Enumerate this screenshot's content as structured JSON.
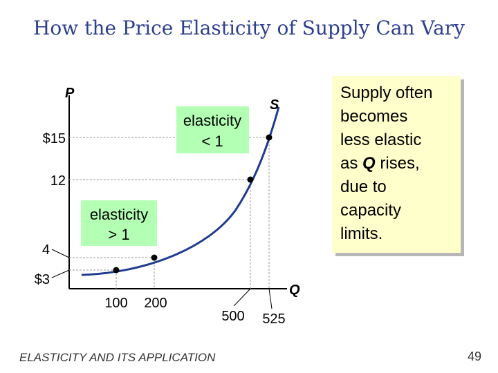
{
  "slide": {
    "title": "How the Price Elasticity of Supply Can Vary",
    "footer": "ELASTICITY AND ITS APPLICATION",
    "page_number": "49",
    "callout": {
      "line1": "Supply often",
      "line2": "becomes",
      "line3": "less elastic",
      "line4_pre": "as ",
      "line4_em": "Q",
      "line4_post": " rises,",
      "line5": "due to",
      "line6": "capacity",
      "line7": "limits."
    }
  },
  "colors": {
    "title": "#2e3f8f",
    "curve": "#1f3a8f",
    "annotation_fill": "#b3ffb3",
    "callout_fill": "#ffffcc",
    "guide": "#999999"
  },
  "chart_data": {
    "type": "line",
    "xlabel": "Q",
    "ylabel": "P",
    "curve_label": "S",
    "points": [
      {
        "x": 100,
        "y": 3
      },
      {
        "x": 200,
        "y": 4
      },
      {
        "x": 500,
        "y": 12
      },
      {
        "x": 525,
        "y": 15
      }
    ],
    "x_ticks": [
      {
        "value": 100,
        "label": "100"
      },
      {
        "value": 200,
        "label": "200"
      },
      {
        "value": 500,
        "label": "500"
      },
      {
        "value": 525,
        "label": "525"
      }
    ],
    "y_ticks": [
      {
        "value": 15,
        "label": "$15"
      },
      {
        "value": 12,
        "label": "12"
      },
      {
        "value": 4,
        "label": "4"
      },
      {
        "value": 3,
        "label": "$3"
      }
    ],
    "annotations": {
      "inelastic": {
        "line1": "elasticity",
        "line2": "< 1"
      },
      "elastic": {
        "line1": "elasticity",
        "line2": "> 1"
      }
    }
  }
}
